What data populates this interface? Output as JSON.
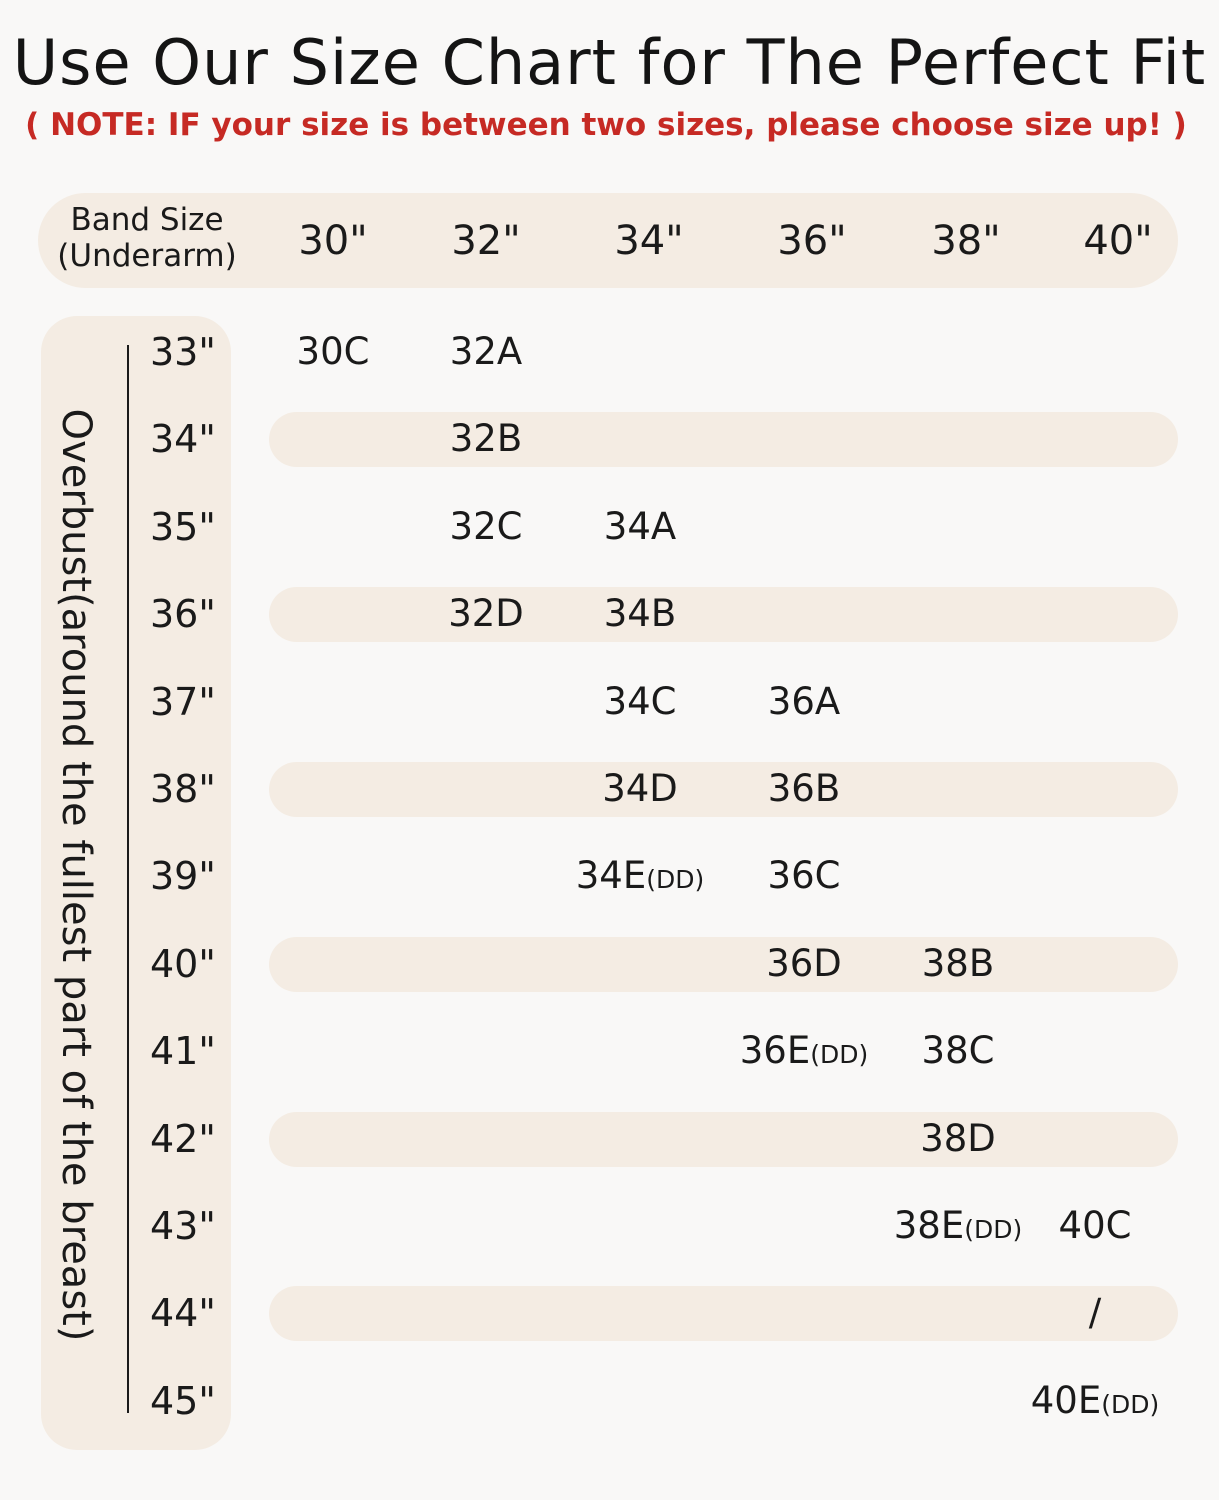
{
  "title": "Use Our Size Chart for The Perfect Fit",
  "note": "( NOTE: IF your size is between two sizes, please choose size up! )",
  "header": {
    "band_label_line1": "Band Size",
    "band_label_line2": "(Underarm)",
    "columns": [
      "30\"",
      "32\"",
      "34\"",
      "36\"",
      "38\"",
      "40\""
    ]
  },
  "vertical_label": "Overbust(around the fullest part of the breast)",
  "rows": [
    {
      "label": "33\"",
      "cells": [
        {
          "col": 0,
          "size": "30C"
        },
        {
          "col": 1,
          "size": "32A"
        }
      ]
    },
    {
      "label": "34\"",
      "cells": [
        {
          "col": 1,
          "size": "32B"
        }
      ]
    },
    {
      "label": "35\"",
      "cells": [
        {
          "col": 1,
          "size": "32C"
        },
        {
          "col": 2,
          "size": "34A"
        }
      ]
    },
    {
      "label": "36\"",
      "cells": [
        {
          "col": 1,
          "size": "32D"
        },
        {
          "col": 2,
          "size": "34B"
        }
      ]
    },
    {
      "label": "37\"",
      "cells": [
        {
          "col": 2,
          "size": "34C"
        },
        {
          "col": 3,
          "size": "36A"
        }
      ]
    },
    {
      "label": "38\"",
      "cells": [
        {
          "col": 2,
          "size": "34D"
        },
        {
          "col": 3,
          "size": "36B"
        }
      ]
    },
    {
      "label": "39\"",
      "cells": [
        {
          "col": 2,
          "size": "34E",
          "suffix": "(DD)"
        },
        {
          "col": 3,
          "size": "36C"
        }
      ]
    },
    {
      "label": "40\"",
      "cells": [
        {
          "col": 3,
          "size": "36D"
        },
        {
          "col": 4,
          "size": "38B"
        }
      ]
    },
    {
      "label": "41\"",
      "cells": [
        {
          "col": 3,
          "size": "36E",
          "suffix": "(DD)"
        },
        {
          "col": 4,
          "size": "38C"
        }
      ]
    },
    {
      "label": "42\"",
      "cells": [
        {
          "col": 4,
          "size": "38D"
        }
      ]
    },
    {
      "label": "43\"",
      "cells": [
        {
          "col": 4,
          "size": "38E",
          "suffix": "(DD)"
        },
        {
          "col": 5,
          "size": "40C"
        }
      ]
    },
    {
      "label": "44\"",
      "cells": [
        {
          "col": 5,
          "size": "/"
        }
      ]
    },
    {
      "label": "45\"",
      "cells": [
        {
          "col": 5,
          "size": "40E",
          "suffix": "(DD)"
        }
      ]
    }
  ],
  "colors": {
    "background": "#f9f8f7",
    "band_fill": "#f4ece3",
    "note_red": "#c62a24",
    "text": "#1a1a1a"
  }
}
